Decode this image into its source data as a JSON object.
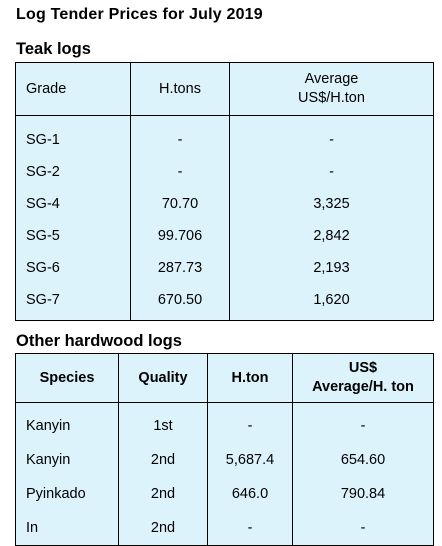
{
  "page_title": "Log Tender Prices for July 2019",
  "teak": {
    "title": "Teak logs",
    "headers": [
      "Grade",
      "H.tons",
      "Average",
      "US$/H.ton"
    ],
    "rows": [
      [
        "SG-1",
        "-",
        "-"
      ],
      [
        "SG-2",
        "-",
        "-"
      ],
      [
        "SG-4",
        "70.70",
        "3,325"
      ],
      [
        "SG-5",
        "99.706",
        "2,842"
      ],
      [
        "SG-6",
        "287.73",
        "2,193"
      ],
      [
        "SG-7",
        "670.50",
        "1,620"
      ]
    ]
  },
  "hardwood": {
    "title": "Other hardwood logs",
    "headers": [
      "Species",
      "Quality",
      "H.ton",
      "US$",
      "Average/H. ton"
    ],
    "rows": [
      [
        "Kanyin",
        "1st",
        "-",
        "-"
      ],
      [
        "Kanyin",
        "2nd",
        "5,687.4",
        "654.60"
      ],
      [
        "Pyinkado",
        "2nd",
        "646.0",
        "790.84"
      ],
      [
        "In",
        "2nd",
        "-",
        "-"
      ]
    ]
  },
  "colors": {
    "table_background": "#ddf3fb",
    "border": "#000000"
  }
}
